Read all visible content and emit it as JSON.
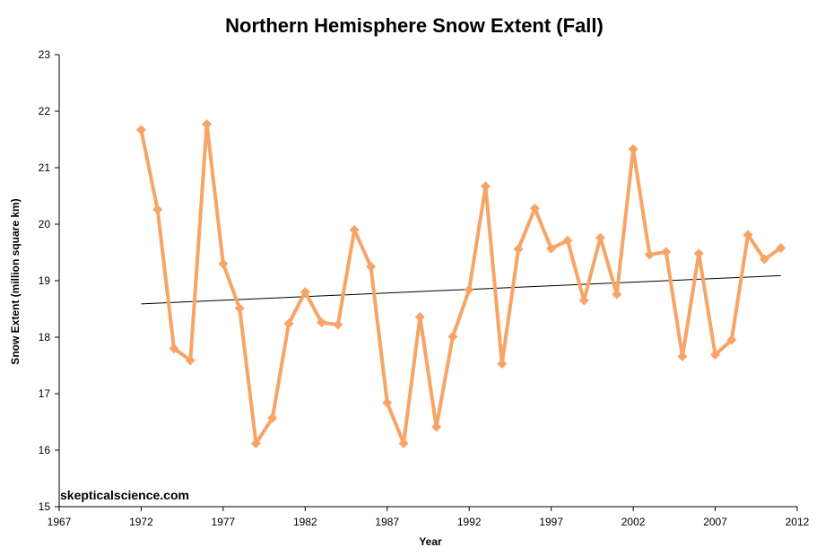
{
  "chart_data": {
    "type": "line",
    "title": "Northern Hemisphere Snow Extent (Fall)",
    "xlabel": "Year",
    "ylabel": "Snow Extent (million square km)",
    "xlim": [
      1967,
      2012
    ],
    "ylim": [
      15,
      23
    ],
    "x_ticks": [
      1967,
      1972,
      1977,
      1982,
      1987,
      1992,
      1997,
      2002,
      2007,
      2012
    ],
    "y_ticks": [
      15,
      16,
      17,
      18,
      19,
      20,
      21,
      22,
      23
    ],
    "grid": false,
    "legend": "none",
    "watermark": "skepticalscience.com",
    "series": [
      {
        "color": "#F7A466",
        "marker": "diamond",
        "x": [
          1972,
          1973,
          1974,
          1975,
          1976,
          1977,
          1978,
          1979,
          1980,
          1981,
          1982,
          1983,
          1984,
          1985,
          1986,
          1987,
          1988,
          1989,
          1990,
          1991,
          1992,
          1993,
          1994,
          1995,
          1996,
          1997,
          1998,
          1999,
          2000,
          2001,
          2002,
          2003,
          2004,
          2005,
          2006,
          2007,
          2008,
          2009,
          2010,
          2011
        ],
        "values": [
          21.67,
          20.26,
          17.8,
          17.59,
          21.77,
          19.3,
          18.51,
          16.12,
          16.57,
          18.24,
          18.8,
          18.26,
          18.22,
          19.9,
          19.25,
          16.84,
          16.12,
          18.36,
          16.41,
          18.01,
          18.84,
          20.67,
          17.53,
          19.56,
          20.28,
          19.57,
          19.71,
          18.65,
          19.76,
          18.76,
          21.33,
          19.46,
          19.51,
          17.66,
          19.48,
          17.69,
          17.95,
          19.81,
          19.38,
          19.58
        ]
      }
    ],
    "trendline": {
      "color": "#000000",
      "x": [
        1972,
        2011
      ],
      "values": [
        18.59,
        19.09
      ]
    }
  }
}
